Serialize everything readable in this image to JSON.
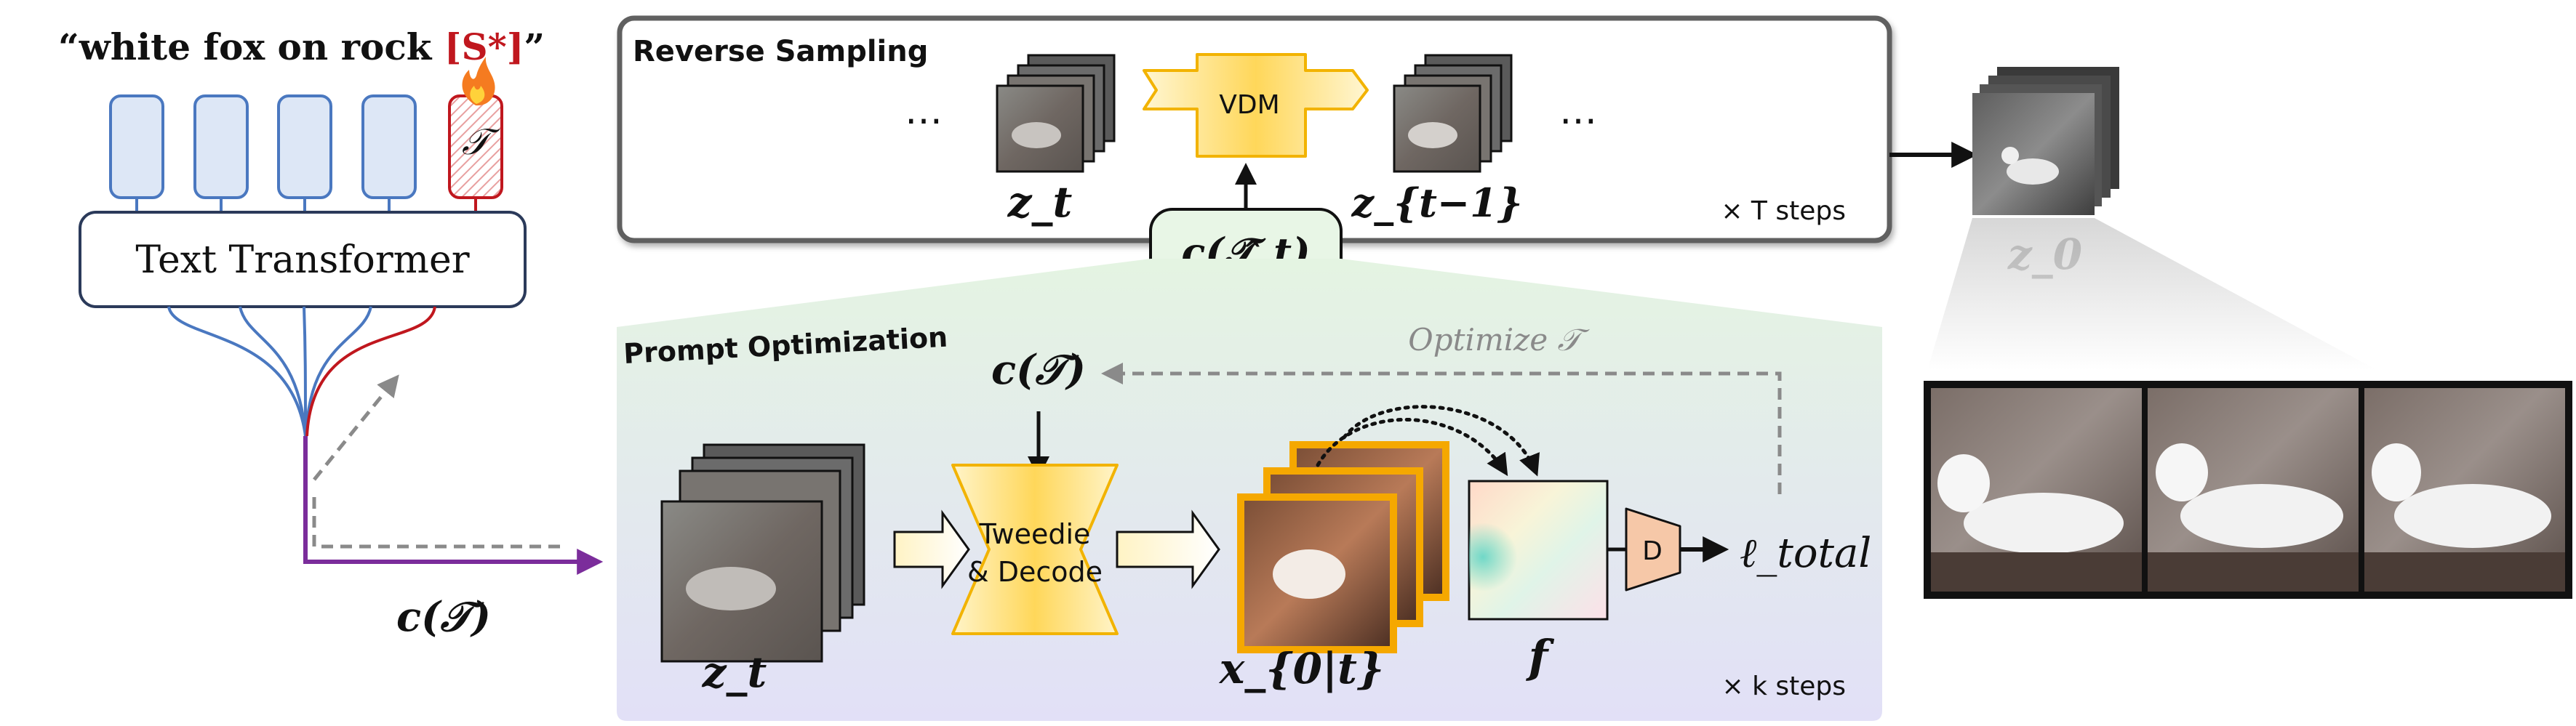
{
  "prompt": {
    "open_quote": "“",
    "text": "white fox on rock ",
    "token": "[S*]",
    "close_quote": "”"
  },
  "token_symbol": "𝒯",
  "text_encoder_label": "Text Transformer",
  "embedding_label": "c(𝒯)",
  "reverse_sampling": {
    "title": "Reverse Sampling",
    "ellipsis_left": "…",
    "ellipsis_right": "…",
    "model_label": "VDM",
    "latent_t": "z_t",
    "latent_t_minus_1": "z_{t−1}",
    "steps": "× T steps",
    "condition_label": "c(𝒯̂_t)"
  },
  "output_label": "z_0",
  "prompt_optimization": {
    "title": "Prompt Optimization",
    "optimize_label": "Optimize 𝒯",
    "condition_label": "c(𝒯)",
    "latent_label": "z_t",
    "tweedie_label_line1": "Tweedie",
    "tweedie_label_line2": "& Decode",
    "x0_label": "x_{0|t}",
    "feature_label": "f",
    "discriminator_label": "D",
    "loss_label": "ℓ_total",
    "steps": "× k steps"
  },
  "colors": {
    "token_red": "#c0171e",
    "encoder_blue": "#4a78c0",
    "embedding_purple": "#7b2d9b",
    "vdm_yellow": "#ffd75a",
    "condition_green": "#e8f6e6",
    "discriminator_peach": "#f6c8a8",
    "frame_orange": "#f5a800"
  }
}
